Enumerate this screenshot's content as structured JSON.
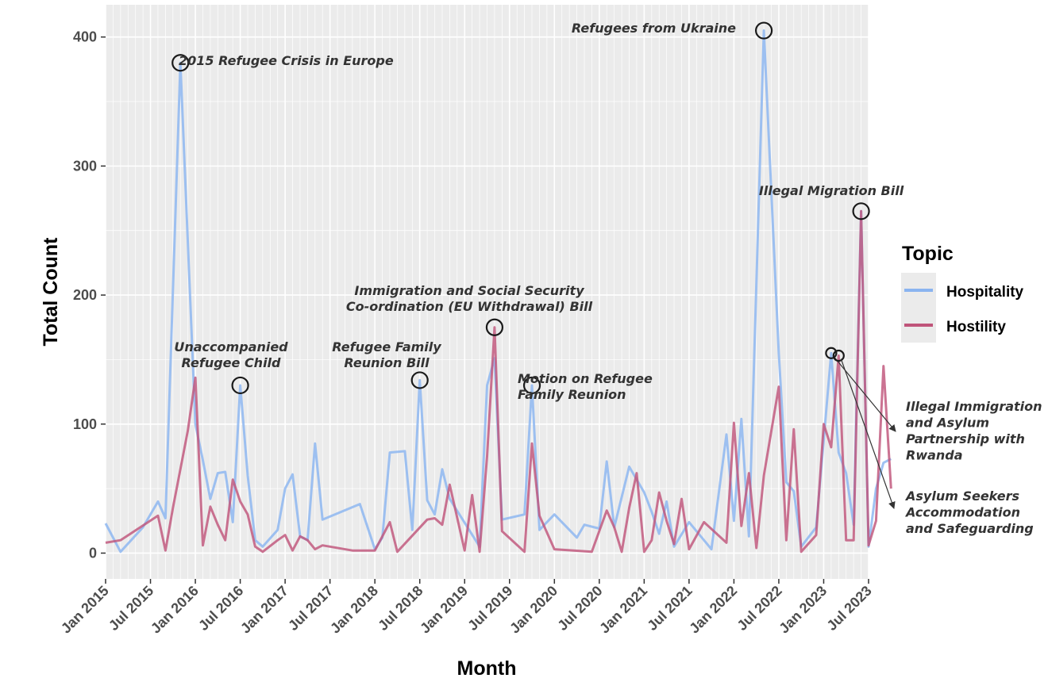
{
  "chart_data": {
    "type": "line",
    "xlabel": "Month",
    "ylabel": "Total Count",
    "ylim": [
      -20,
      425
    ],
    "y_ticks": [
      0,
      100,
      200,
      300,
      400
    ],
    "x_tick_labels": [
      "Jan 2015",
      "Jul 2015",
      "Jan 2016",
      "Jul 2016",
      "Jan 2017",
      "Jul 2017",
      "Jan 2018",
      "Jul 2018",
      "Jan 2019",
      "Jul 2019",
      "Jan 2020",
      "Jul 2020",
      "Jan 2021",
      "Jul 2021",
      "Jan 2022",
      "Jul 2022",
      "Jan 2023",
      "Jul 2023"
    ],
    "x_range": [
      "2015-01",
      "2023-07"
    ],
    "grid": true,
    "legend": {
      "title": "Topic",
      "position": "right"
    },
    "series": [
      {
        "name": "Hospitality",
        "color": "#8ab4f0",
        "points": [
          [
            "2015-01",
            23
          ],
          [
            "2015-03",
            1
          ],
          [
            "2015-06",
            20
          ],
          [
            "2015-08",
            40
          ],
          [
            "2015-09",
            27
          ],
          [
            "2015-11",
            380
          ],
          [
            "2016-01",
            100
          ],
          [
            "2016-02",
            72
          ],
          [
            "2016-03",
            42
          ],
          [
            "2016-04",
            62
          ],
          [
            "2016-05",
            63
          ],
          [
            "2016-06",
            24
          ],
          [
            "2016-07",
            130
          ],
          [
            "2016-08",
            60
          ],
          [
            "2016-09",
            10
          ],
          [
            "2016-10",
            5
          ],
          [
            "2016-12",
            18
          ],
          [
            "2017-01",
            50
          ],
          [
            "2017-02",
            61
          ],
          [
            "2017-03",
            13
          ],
          [
            "2017-04",
            10
          ],
          [
            "2017-05",
            85
          ],
          [
            "2017-06",
            26
          ],
          [
            "2017-11",
            38
          ],
          [
            "2018-01",
            3
          ],
          [
            "2018-02",
            12
          ],
          [
            "2018-03",
            78
          ],
          [
            "2018-05",
            79
          ],
          [
            "2018-06",
            18
          ],
          [
            "2018-07",
            134
          ],
          [
            "2018-08",
            41
          ],
          [
            "2018-09",
            30
          ],
          [
            "2018-10",
            65
          ],
          [
            "2018-11",
            42
          ],
          [
            "2019-03",
            5
          ],
          [
            "2019-04",
            130
          ],
          [
            "2019-05",
            151
          ],
          [
            "2019-06",
            26
          ],
          [
            "2019-09",
            30
          ],
          [
            "2019-10",
            130
          ],
          [
            "2019-11",
            18
          ],
          [
            "2020-01",
            30
          ],
          [
            "2020-04",
            12
          ],
          [
            "2020-05",
            22
          ],
          [
            "2020-07",
            19
          ],
          [
            "2020-08",
            71
          ],
          [
            "2020-09",
            20
          ],
          [
            "2020-11",
            67
          ],
          [
            "2021-01",
            47
          ],
          [
            "2021-02",
            32
          ],
          [
            "2021-03",
            15
          ],
          [
            "2021-04",
            40
          ],
          [
            "2021-05",
            5
          ],
          [
            "2021-07",
            24
          ],
          [
            "2021-10",
            3
          ],
          [
            "2021-12",
            92
          ],
          [
            "2022-01",
            25
          ],
          [
            "2022-02",
            104
          ],
          [
            "2022-03",
            13
          ],
          [
            "2022-05",
            405
          ],
          [
            "2022-07",
            155
          ],
          [
            "2022-08",
            55
          ],
          [
            "2022-09",
            48
          ],
          [
            "2022-10",
            5
          ],
          [
            "2022-12",
            20
          ],
          [
            "2023-02",
            155
          ],
          [
            "2023-03",
            78
          ],
          [
            "2023-04",
            62
          ],
          [
            "2023-05",
            22
          ],
          [
            "2023-06",
            265
          ],
          [
            "2023-07",
            5
          ],
          [
            "2023-08",
            50
          ],
          [
            "2023-09",
            70
          ],
          [
            "2023-10",
            73
          ]
        ]
      },
      {
        "name": "Hostility",
        "color": "#c0547a",
        "points": [
          [
            "2015-01",
            8
          ],
          [
            "2015-03",
            10
          ],
          [
            "2015-08",
            29
          ],
          [
            "2015-09",
            2
          ],
          [
            "2015-10",
            35
          ],
          [
            "2015-12",
            95
          ],
          [
            "2016-01",
            136
          ],
          [
            "2016-02",
            6
          ],
          [
            "2016-03",
            36
          ],
          [
            "2016-04",
            22
          ],
          [
            "2016-05",
            10
          ],
          [
            "2016-06",
            57
          ],
          [
            "2016-07",
            40
          ],
          [
            "2016-08",
            30
          ],
          [
            "2016-09",
            5
          ],
          [
            "2016-10",
            1
          ],
          [
            "2016-12",
            10
          ],
          [
            "2017-01",
            14
          ],
          [
            "2017-02",
            2
          ],
          [
            "2017-03",
            13
          ],
          [
            "2017-04",
            10
          ],
          [
            "2017-05",
            3
          ],
          [
            "2017-06",
            6
          ],
          [
            "2017-10",
            2
          ],
          [
            "2017-12",
            2
          ],
          [
            "2018-01",
            2
          ],
          [
            "2018-03",
            24
          ],
          [
            "2018-04",
            1
          ],
          [
            "2018-08",
            26
          ],
          [
            "2018-09",
            27
          ],
          [
            "2018-10",
            22
          ],
          [
            "2018-11",
            53
          ],
          [
            "2019-01",
            2
          ],
          [
            "2019-02",
            45
          ],
          [
            "2019-03",
            1
          ],
          [
            "2019-04",
            75
          ],
          [
            "2019-05",
            175
          ],
          [
            "2019-06",
            17
          ],
          [
            "2019-09",
            1
          ],
          [
            "2019-10",
            85
          ],
          [
            "2019-11",
            29
          ],
          [
            "2020-01",
            3
          ],
          [
            "2020-06",
            1
          ],
          [
            "2020-08",
            33
          ],
          [
            "2020-09",
            20
          ],
          [
            "2020-10",
            1
          ],
          [
            "2020-11",
            35
          ],
          [
            "2020-12",
            62
          ],
          [
            "2021-01",
            1
          ],
          [
            "2021-02",
            10
          ],
          [
            "2021-03",
            47
          ],
          [
            "2021-04",
            25
          ],
          [
            "2021-05",
            7
          ],
          [
            "2021-06",
            42
          ],
          [
            "2021-07",
            3
          ],
          [
            "2021-09",
            24
          ],
          [
            "2021-12",
            8
          ],
          [
            "2022-01",
            101
          ],
          [
            "2022-02",
            21
          ],
          [
            "2022-03",
            62
          ],
          [
            "2022-04",
            4
          ],
          [
            "2022-05",
            60
          ],
          [
            "2022-07",
            129
          ],
          [
            "2022-08",
            10
          ],
          [
            "2022-09",
            96
          ],
          [
            "2022-10",
            1
          ],
          [
            "2022-12",
            14
          ],
          [
            "2023-01",
            100
          ],
          [
            "2023-02",
            82
          ],
          [
            "2023-03",
            153
          ],
          [
            "2023-04",
            10
          ],
          [
            "2023-05",
            10
          ],
          [
            "2023-06",
            265
          ],
          [
            "2023-07",
            6
          ],
          [
            "2023-08",
            25
          ],
          [
            "2023-09",
            145
          ],
          [
            "2023-10",
            50
          ]
        ]
      }
    ],
    "annotations": [
      {
        "lines": [
          "2015 Refugee Crisis in Europe"
        ],
        "circle": [
          "2015-11",
          380
        ]
      },
      {
        "lines": [
          "Unaccompanied",
          "Refugee Child"
        ],
        "circle": [
          "2016-07",
          130
        ]
      },
      {
        "lines": [
          "Refugee Family",
          "Reunion Bill"
        ],
        "circle": [
          "2018-07",
          134
        ]
      },
      {
        "lines": [
          "Immigration and Social Security",
          "Co-ordination (EU Withdrawal) Bill"
        ],
        "circle": [
          "2019-05",
          175
        ]
      },
      {
        "lines": [
          "Motion on Refugee",
          "Family Reunion"
        ],
        "circle": [
          "2019-10",
          130
        ]
      },
      {
        "lines": [
          "Refugees from Ukraine"
        ],
        "circle": [
          "2022-05",
          405
        ]
      },
      {
        "lines": [
          "Illegal Migration Bill"
        ],
        "circle": [
          "2023-06",
          265
        ]
      },
      {
        "lines": [
          "Illegal Immigration",
          "and Asylum",
          "Partnership with",
          "Rwanda"
        ],
        "circle": [
          "2023-02",
          155
        ]
      },
      {
        "lines": [
          "Asylum Seekers",
          "Accommodation",
          "and Safeguarding"
        ],
        "circle": [
          "2023-03",
          153
        ]
      }
    ]
  }
}
